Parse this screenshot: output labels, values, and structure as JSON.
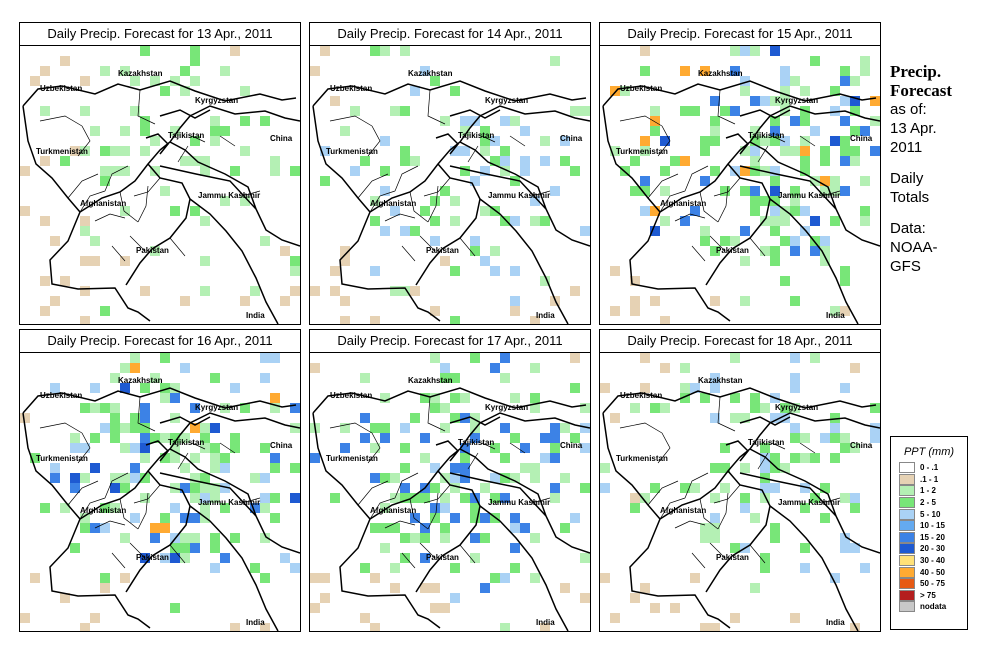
{
  "countries": [
    "Uzbekistan",
    "Kazakhstan",
    "Kyrgyzstan",
    "Tajikistan",
    "China",
    "Turkmenistan",
    "Afghanistan",
    "Jammu Kashmir",
    "Pakistan",
    "India"
  ],
  "panels": [
    {
      "title": "Daily Precip. Forecast for  13 Apr., 2011",
      "intensity": 0
    },
    {
      "title": "Daily Precip. Forecast for  14 Apr., 2011",
      "intensity": 1
    },
    {
      "title": "Daily Precip. Forecast for  15 Apr., 2011",
      "intensity": 3
    },
    {
      "title": "Daily Precip. Forecast for  16 Apr., 2011",
      "intensity": 3
    },
    {
      "title": "Daily Precip. Forecast for  17 Apr., 2011",
      "intensity": 2
    },
    {
      "title": "Daily Precip. Forecast for  18 Apr., 2011",
      "intensity": 1
    }
  ],
  "side": {
    "heading1": "Precip.",
    "heading2": "Forecast",
    "asof": "as of:",
    "date1": "13 Apr.",
    "date2": "2011",
    "daily1": "Daily",
    "daily2": "Totals",
    "data1": "Data:",
    "data2": "NOAA-",
    "data3": "GFS"
  },
  "legend": {
    "title": "PPT (mm)",
    "items": [
      {
        "label": "0 - .1",
        "color": "#ffffff"
      },
      {
        "label": ".1 - 1",
        "color": "#e6d2b4"
      },
      {
        "label": "1 - 2",
        "color": "#b4f0b4"
      },
      {
        "label": "2 - 5",
        "color": "#78e678"
      },
      {
        "label": "5 - 10",
        "color": "#aad2f5"
      },
      {
        "label": "10 - 15",
        "color": "#64aaf0"
      },
      {
        "label": "15 - 20",
        "color": "#3c82e6"
      },
      {
        "label": "20 - 30",
        "color": "#1e5ad2"
      },
      {
        "label": "30 - 40",
        "color": "#ffe178"
      },
      {
        "label": "40 - 50",
        "color": "#ffaa32"
      },
      {
        "label": "50 - 75",
        "color": "#e65a14"
      },
      {
        "label": "> 75",
        "color": "#b41e1e"
      },
      {
        "label": "nodata",
        "color": "#c8c8c8"
      }
    ]
  }
}
